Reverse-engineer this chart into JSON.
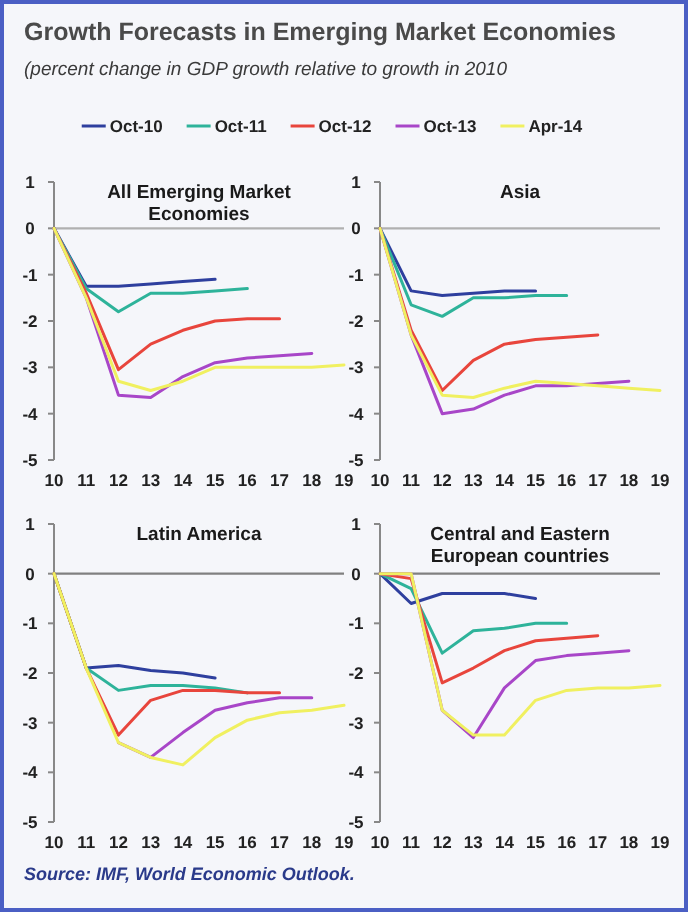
{
  "chart_data": [
    {
      "type": "line",
      "title": "All Emerging Market Economies",
      "annotations": [
        "Growth Forecasts in Emerging Market Economies",
        "(percent change in GDP growth relative to growth in 2010"
      ],
      "legend": "top",
      "x": [
        10,
        11,
        12,
        13,
        14,
        15,
        16,
        17,
        18,
        19
      ],
      "xlim": [
        10,
        19
      ],
      "xticks": [
        10,
        11,
        12,
        13,
        14,
        15,
        16,
        17,
        18,
        19
      ],
      "ylim": [
        -5,
        1
      ],
      "yticks": [
        -5,
        -4,
        -3,
        -2,
        -1,
        0,
        1
      ],
      "ref_lines": [
        {
          "axis": "y",
          "value": 0,
          "color": "#b0b0b0"
        }
      ],
      "series": [
        {
          "name": "Oct-10",
          "color": "#2e3f9e",
          "values": [
            0,
            -1.25,
            -1.25,
            -1.2,
            -1.15,
            -1.1,
            null,
            null,
            null,
            null
          ]
        },
        {
          "name": "Oct-11",
          "color": "#2eb39a",
          "values": [
            0,
            -1.3,
            -1.8,
            -1.4,
            -1.4,
            -1.35,
            -1.3,
            null,
            null,
            null
          ]
        },
        {
          "name": "Oct-12",
          "color": "#e8453c",
          "values": [
            0,
            -1.4,
            -3.05,
            -2.5,
            -2.2,
            -2.0,
            -1.95,
            -1.95,
            null,
            null
          ]
        },
        {
          "name": "Oct-13",
          "color": "#a846c8",
          "values": [
            0,
            -1.5,
            -3.6,
            -3.65,
            -3.2,
            -2.9,
            -2.8,
            -2.75,
            -2.7,
            null
          ]
        },
        {
          "name": "Apr-14",
          "color": "#f0f060",
          "values": [
            0,
            -1.5,
            -3.3,
            -3.5,
            -3.3,
            -3.0,
            -3.0,
            -3.0,
            -3.0,
            -2.95
          ]
        }
      ]
    },
    {
      "type": "line",
      "title": "Asia",
      "x": [
        10,
        11,
        12,
        13,
        14,
        15,
        16,
        17,
        18,
        19
      ],
      "xlim": [
        10,
        19
      ],
      "xticks": [
        10,
        11,
        12,
        13,
        14,
        15,
        16,
        17,
        18,
        19
      ],
      "ylim": [
        -5,
        1
      ],
      "yticks": [
        -5,
        -4,
        -3,
        -2,
        -1,
        0,
        1
      ],
      "ref_lines": [
        {
          "axis": "y",
          "value": 0,
          "color": "#b0b0b0"
        }
      ],
      "series": [
        {
          "color": "#2e3f9e",
          "values": [
            0,
            -1.35,
            -1.45,
            -1.4,
            -1.35,
            -1.35,
            null,
            null,
            null,
            null
          ]
        },
        {
          "color": "#2eb39a",
          "values": [
            0,
            -1.65,
            -1.9,
            -1.5,
            -1.5,
            -1.45,
            -1.45,
            null,
            null,
            null
          ]
        },
        {
          "color": "#e8453c",
          "values": [
            0,
            -2.2,
            -3.5,
            -2.85,
            -2.5,
            -2.4,
            -2.35,
            -2.3,
            null,
            null
          ]
        },
        {
          "color": "#a846c8",
          "values": [
            0,
            -2.3,
            -4.0,
            -3.9,
            -3.6,
            -3.4,
            -3.4,
            -3.35,
            -3.3,
            null
          ]
        },
        {
          "color": "#f0f060",
          "values": [
            0,
            -2.3,
            -3.6,
            -3.65,
            -3.45,
            -3.3,
            -3.35,
            -3.4,
            -3.45,
            -3.5
          ]
        }
      ]
    },
    {
      "type": "line",
      "title": "Latin America",
      "annotations": [
        "Source: IMF, World Economic Outlook."
      ],
      "x": [
        10,
        11,
        12,
        13,
        14,
        15,
        16,
        17,
        18,
        19
      ],
      "xlim": [
        10,
        19
      ],
      "xticks": [
        10,
        11,
        12,
        13,
        14,
        15,
        16,
        17,
        18,
        19
      ],
      "ylim": [
        -5,
        1
      ],
      "yticks": [
        -5,
        -4,
        -3,
        -2,
        -1,
        0,
        1
      ],
      "ref_lines": [
        {
          "axis": "y",
          "value": 0,
          "color": "#808080"
        }
      ],
      "series": [
        {
          "color": "#2e3f9e",
          "values": [
            0,
            -1.9,
            -1.85,
            -1.95,
            -2.0,
            -2.1,
            null,
            null,
            null,
            null
          ]
        },
        {
          "color": "#2eb39a",
          "values": [
            0,
            -1.9,
            -2.35,
            -2.25,
            -2.25,
            -2.3,
            -2.4,
            null,
            null,
            null
          ]
        },
        {
          "color": "#e8453c",
          "values": [
            0,
            -1.9,
            -3.25,
            -2.55,
            -2.35,
            -2.35,
            -2.4,
            -2.4,
            null,
            null
          ]
        },
        {
          "color": "#a846c8",
          "values": [
            null,
            null,
            -3.4,
            -3.7,
            -3.2,
            -2.75,
            -2.6,
            -2.5,
            -2.5,
            null
          ]
        },
        {
          "color": "#f0f060",
          "values": [
            0,
            -1.9,
            -3.4,
            -3.7,
            -3.85,
            -3.3,
            -2.95,
            -2.8,
            -2.75,
            -2.65
          ]
        }
      ]
    },
    {
      "type": "line",
      "title": "Central and Eastern European countries",
      "x": [
        10,
        11,
        12,
        13,
        14,
        15,
        16,
        17,
        18,
        19
      ],
      "xlim": [
        10,
        19
      ],
      "xticks": [
        10,
        11,
        12,
        13,
        14,
        15,
        16,
        17,
        18,
        19
      ],
      "ylim": [
        -5,
        1
      ],
      "yticks": [
        -5,
        -4,
        -3,
        -2,
        -1,
        0,
        1
      ],
      "ref_lines": [
        {
          "axis": "y",
          "value": 0,
          "color": "#808080"
        }
      ],
      "series": [
        {
          "color": "#2e3f9e",
          "values": [
            0,
            -0.6,
            -0.4,
            -0.4,
            -0.4,
            -0.5,
            null,
            null,
            null,
            null
          ]
        },
        {
          "color": "#2eb39a",
          "values": [
            0,
            -0.3,
            -1.6,
            -1.15,
            -1.1,
            -1.0,
            -1.0,
            null,
            null,
            null
          ]
        },
        {
          "color": "#e8453c",
          "values": [
            0,
            -0.1,
            -2.2,
            -1.9,
            -1.55,
            -1.35,
            -1.3,
            -1.25,
            null,
            null
          ]
        },
        {
          "color": "#a846c8",
          "values": [
            0,
            0,
            -2.75,
            -3.3,
            -2.3,
            -1.75,
            -1.65,
            -1.6,
            -1.55,
            null
          ]
        },
        {
          "color": "#f0f060",
          "values": [
            0,
            0,
            -2.75,
            -3.25,
            -3.25,
            -2.55,
            -2.35,
            -2.3,
            -2.3,
            -2.25
          ]
        }
      ]
    }
  ]
}
